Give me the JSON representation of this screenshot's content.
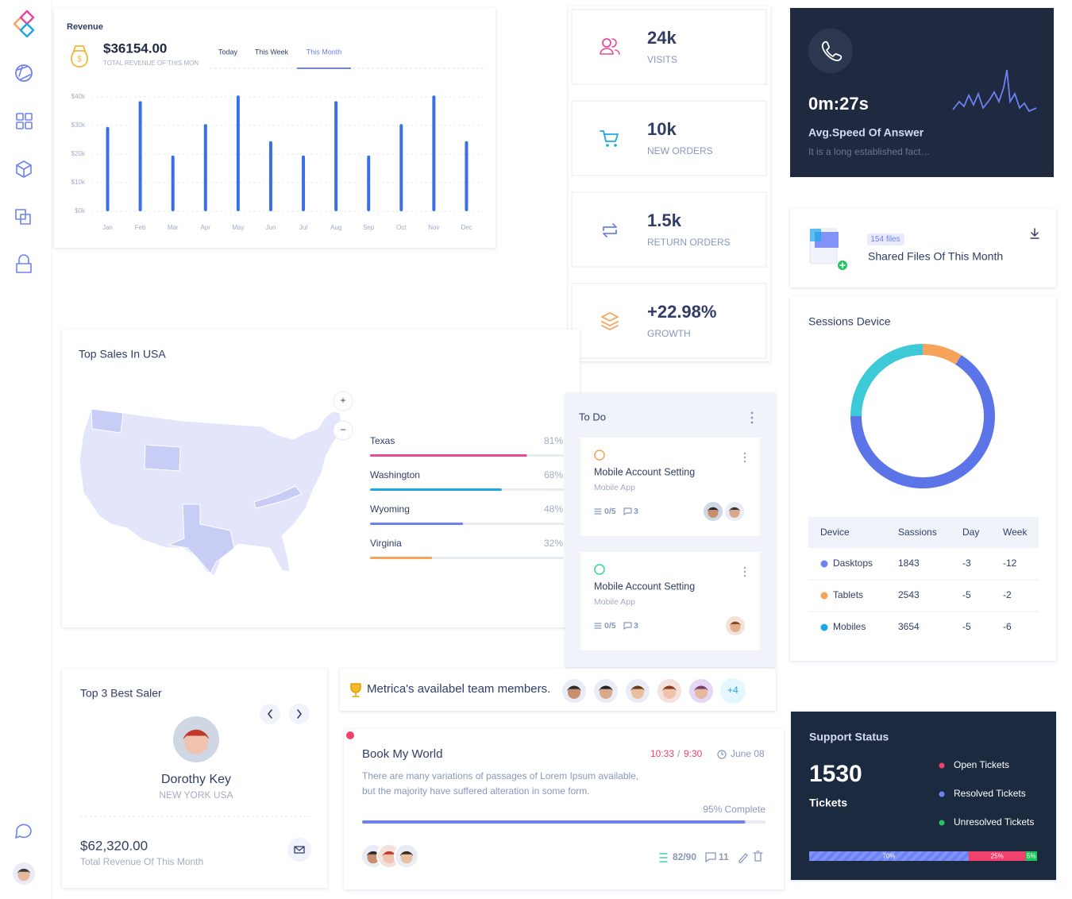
{
  "revenue": {
    "title": "Revenue",
    "amount": "$36154.00",
    "caption": "TOTAL REVENUE OF THIS MON",
    "tabs": [
      "Today",
      "This Week",
      "This Month"
    ]
  },
  "chart_data": [
    {
      "type": "bar",
      "color": "#3a6fe8",
      "grid": true,
      "categories": [
        "Jan",
        "Feb",
        "Mar",
        "Apr",
        "May",
        "Jun",
        "Jul",
        "Aug",
        "Sep",
        "Oct",
        "Nov",
        "Dec"
      ],
      "values": [
        29500,
        38500,
        19500,
        30500,
        40500,
        24500,
        19500,
        38500,
        19500,
        30500,
        40500,
        24500
      ],
      "ylim": [
        0,
        40000
      ],
      "yticks": [
        {
          "value": 0,
          "label": "$0k"
        },
        {
          "value": 10000,
          "label": "$10k"
        },
        {
          "value": 20000,
          "label": "$20k"
        },
        {
          "value": 30000,
          "label": "$30k"
        },
        {
          "value": 40000,
          "label": "$40k"
        }
      ]
    },
    {
      "type": "donut",
      "title": "Sessions Device",
      "values": [
        9,
        66,
        25
      ],
      "colors": [
        "#f7a35c",
        "#5b74e8",
        "#3cc9d8"
      ]
    }
  ],
  "stats": [
    {
      "value": "24k",
      "label": "VISITS"
    },
    {
      "value": "10k",
      "label": "NEW ORDERS"
    },
    {
      "value": "1.5k",
      "label": "RETURN ORDERS"
    },
    {
      "value": "+22.98%",
      "label": "GROWTH"
    }
  ],
  "answer": {
    "time": "0m:27s",
    "title": "Avg.Speed Of Answer",
    "text": "It is a long established fact…"
  },
  "files": {
    "badge": "154 files",
    "title": "Shared Files Of This Month"
  },
  "sessions": {
    "table": {
      "header": [
        "Device",
        "Sassions",
        "Day",
        "Week"
      ],
      "rows": [
        [
          "Dasktops",
          1843,
          -3,
          -12
        ],
        [
          "Tablets",
          2543,
          -5,
          -2
        ],
        [
          "Mobiles",
          3654,
          -5,
          -6
        ]
      ],
      "dot_colors": [
        "#6d81f5",
        "#f7a35c",
        "#1ca7e6"
      ]
    }
  },
  "sales": {
    "title": "Top Sales In USA",
    "zoom": [
      "+",
      "−"
    ],
    "states": [
      {
        "name": "Texas",
        "value": 81,
        "value_label": "81%",
        "color": "#ec4899"
      },
      {
        "name": "Washington",
        "value": 68,
        "value_label": "68%",
        "color": "#1ca7e6"
      },
      {
        "name": "Wyoming",
        "value": 48,
        "value_label": "48%",
        "color": "#6d81f5"
      },
      {
        "name": "Virginia",
        "value": 32,
        "value_label": "32%",
        "color": "#f7a35c"
      }
    ]
  },
  "todo": {
    "title": "To Do",
    "items": [
      {
        "title": "Mobile Account Setting",
        "subtitle": "Mobile App",
        "tasks": "0/5",
        "comments": "3",
        "color": "#f7a35c"
      },
      {
        "title": "Mobile Account Setting",
        "subtitle": "Mobile App",
        "tasks": "0/5",
        "comments": "3",
        "color": "#2fd6a2"
      }
    ]
  },
  "best_saler": {
    "title": "Top 3 Best Saler",
    "name": "Dorothy Key",
    "location": "NEW YORK USA",
    "amount": "$62,320.00",
    "caption": "Total Revenue Of This Month"
  },
  "team": {
    "text": "Metrica's availabel team members.",
    "more": "+4"
  },
  "project": {
    "title": "Book My World",
    "time": [
      "10:33",
      "/",
      "9:30"
    ],
    "date": "June 08",
    "description": [
      "There are many variations of passages of Lorem Ipsum available,",
      "but the majority have suffered alteration in some form."
    ],
    "progress": 95,
    "progress_label": "95% Complete",
    "tasks": "82/90",
    "comments": "11"
  },
  "support": {
    "title": "Support Status",
    "count": "1530",
    "unit": "Tickets",
    "legend": [
      {
        "name": "Open Tickets",
        "color": "#f1416c"
      },
      {
        "name": "Resolved Tickets",
        "color": "#6d81f5"
      },
      {
        "name": "Unresolved Tickets",
        "color": "#22c55e"
      }
    ],
    "segments": [
      {
        "value": 70,
        "label": "70%",
        "color": "#6d81f5"
      },
      {
        "value": 25,
        "label": "25%",
        "color": "#f1416c"
      },
      {
        "value": 5,
        "label": "5%",
        "color": "#22c55e"
      }
    ]
  }
}
